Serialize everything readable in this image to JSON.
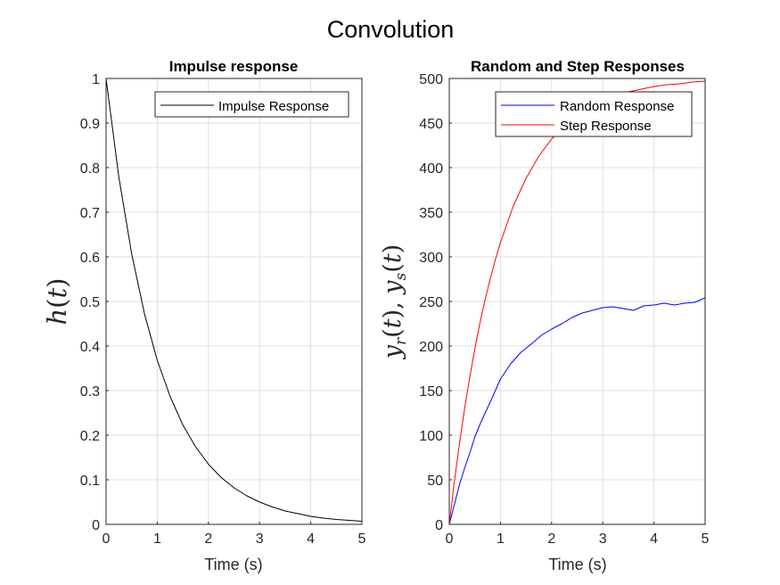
{
  "figure": {
    "title": "Convolution"
  },
  "chart_data": [
    {
      "type": "line",
      "title": "Impulse response",
      "xlabel": "Time (s)",
      "ylabel": "h(t)",
      "xlim": [
        0,
        5
      ],
      "ylim": [
        0,
        1
      ],
      "xticks": [
        "0",
        "1",
        "2",
        "3",
        "4",
        "5"
      ],
      "yticks": [
        "0",
        "0.1",
        "0.2",
        "0.3",
        "0.4",
        "0.5",
        "0.6",
        "0.7",
        "0.8",
        "0.9",
        "1"
      ],
      "grid": true,
      "legend": "top-right",
      "series": [
        {
          "name": "Impulse Response",
          "color": "#000000",
          "x": [
            0,
            0.25,
            0.5,
            0.75,
            1,
            1.25,
            1.5,
            1.75,
            2,
            2.25,
            2.5,
            2.75,
            3,
            3.25,
            3.5,
            3.75,
            4,
            4.25,
            4.5,
            4.75,
            5
          ],
          "y": [
            1,
            0.779,
            0.607,
            0.472,
            0.368,
            0.287,
            0.223,
            0.174,
            0.135,
            0.105,
            0.082,
            0.064,
            0.05,
            0.039,
            0.03,
            0.024,
            0.018,
            0.014,
            0.011,
            0.009,
            0.007
          ]
        }
      ]
    },
    {
      "type": "line",
      "title": "Random and Step Responses",
      "xlabel": "Time (s)",
      "ylabel": "y_r(t), y_s(t)",
      "xlim": [
        0,
        5
      ],
      "ylim": [
        0,
        500
      ],
      "xticks": [
        "0",
        "1",
        "2",
        "3",
        "4",
        "5"
      ],
      "yticks": [
        "0",
        "50",
        "100",
        "150",
        "200",
        "250",
        "300",
        "350",
        "400",
        "450",
        "500"
      ],
      "grid": true,
      "legend": "top-right",
      "series": [
        {
          "name": "Random Response",
          "color": "#0000ff",
          "x": [
            0,
            0.1,
            0.2,
            0.3,
            0.4,
            0.5,
            0.6,
            0.7,
            0.8,
            0.9,
            1.0,
            1.2,
            1.4,
            1.6,
            1.8,
            2.0,
            2.2,
            2.4,
            2.6,
            2.8,
            3.0,
            3.2,
            3.4,
            3.6,
            3.8,
            4.0,
            4.2,
            4.4,
            4.6,
            4.8,
            5.0
          ],
          "y": [
            0,
            22,
            45,
            63,
            80,
            98,
            112,
            125,
            137,
            150,
            163,
            180,
            193,
            202,
            212,
            219,
            225,
            232,
            237,
            240,
            243,
            244,
            242,
            240,
            245,
            246,
            248,
            246,
            248,
            249,
            254
          ]
        },
        {
          "name": "Step Response",
          "color": "#ff0000",
          "x": [
            0,
            0.1,
            0.2,
            0.3,
            0.4,
            0.5,
            0.6,
            0.7,
            0.8,
            0.9,
            1.0,
            1.25,
            1.5,
            1.75,
            2.0,
            2.25,
            2.5,
            2.75,
            3.0,
            3.25,
            3.5,
            3.75,
            4.0,
            4.25,
            4.5,
            4.75,
            5.0
          ],
          "y": [
            0,
            48,
            91,
            130,
            165,
            197,
            226,
            252,
            275,
            297,
            316,
            357,
            388,
            413,
            432,
            447,
            459,
            468,
            475,
            481,
            485,
            488,
            491,
            493,
            494,
            496,
            497
          ]
        }
      ]
    }
  ]
}
